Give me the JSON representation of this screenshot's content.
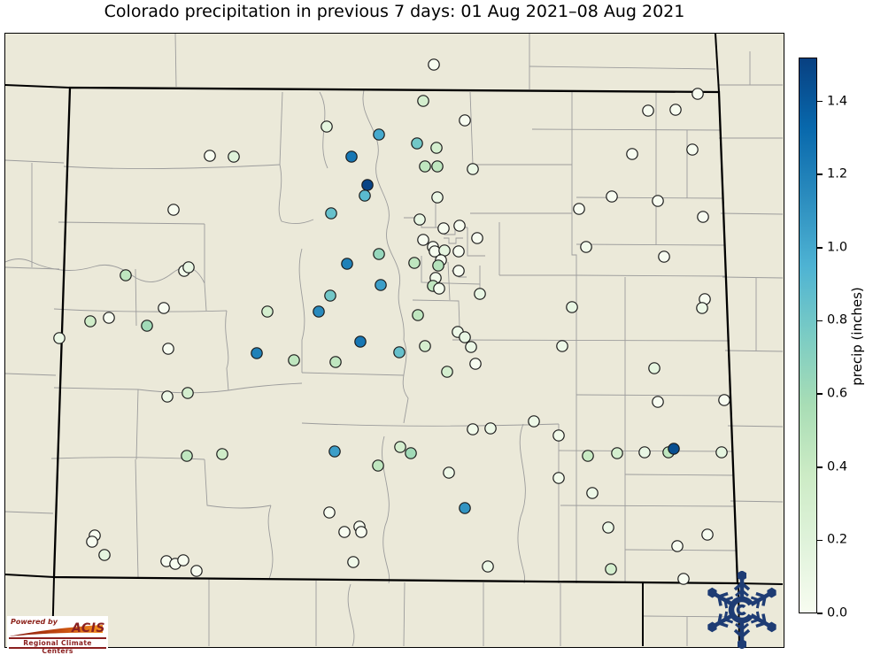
{
  "chart_data": {
    "type": "scatter",
    "title": "Colorado precipitation in previous 7 days: 01 Aug 2021–08 Aug 2021",
    "region": "Colorado state and county boundaries with surrounding states",
    "legend_position": "right colorbar",
    "grid": false,
    "colorbar": {
      "label": "precip (inches)",
      "vmin": 0.0,
      "vmax": 1.52,
      "ticks": [
        0.0,
        0.2,
        0.4,
        0.6,
        0.8,
        1.0,
        1.2,
        1.4
      ],
      "tick_labels": [
        "0.0",
        "0.2",
        "0.4",
        "0.6",
        "0.8",
        "1.0",
        "1.2",
        "1.4"
      ],
      "colormap": "GnBu",
      "stops": [
        "#f7fcf0",
        "#e0f3db",
        "#ccebc5",
        "#a8ddb5",
        "#7bccc4",
        "#4eb3d3",
        "#2b8cbe",
        "#0868ac",
        "#084081"
      ]
    },
    "point_format": [
      "px_x",
      "px_y",
      "precip_inches"
    ],
    "points": [
      [
        489,
        72,
        0
      ],
      [
        787,
        105,
        0
      ],
      [
        762,
        123,
        0
      ],
      [
        731,
        124,
        0
      ],
      [
        477,
        113,
        0.3
      ],
      [
        524,
        135,
        0
      ],
      [
        368,
        142,
        0.15
      ],
      [
        427,
        151,
        1.0
      ],
      [
        470,
        161,
        0.8
      ],
      [
        492,
        166,
        0.3
      ],
      [
        236,
        175,
        0
      ],
      [
        263,
        176,
        0.2
      ],
      [
        396,
        176,
        1.25
      ],
      [
        479,
        187,
        0.45
      ],
      [
        493,
        187,
        0.45
      ],
      [
        533,
        190,
        0.1
      ],
      [
        713,
        173,
        0
      ],
      [
        781,
        168,
        0
      ],
      [
        414,
        208,
        1.5
      ],
      [
        411,
        220,
        0.9
      ],
      [
        493,
        222,
        0.1
      ],
      [
        690,
        221,
        0
      ],
      [
        742,
        226,
        0
      ],
      [
        653,
        235,
        0
      ],
      [
        793,
        244,
        0
      ],
      [
        195,
        236,
        0
      ],
      [
        373,
        240,
        0.85
      ],
      [
        473,
        247,
        0.12
      ],
      [
        500,
        257,
        0
      ],
      [
        518,
        254,
        0
      ],
      [
        477,
        270,
        0
      ],
      [
        538,
        268,
        0
      ],
      [
        488,
        278,
        0.02
      ],
      [
        490,
        283,
        0.02
      ],
      [
        501,
        282,
        0.15
      ],
      [
        517,
        283,
        0
      ],
      [
        661,
        278,
        0.05
      ],
      [
        749,
        289,
        0
      ],
      [
        427,
        286,
        0.65
      ],
      [
        391,
        297,
        1.2
      ],
      [
        467,
        296,
        0.45
      ],
      [
        497,
        293,
        0.03
      ],
      [
        494,
        299,
        0.5
      ],
      [
        517,
        305,
        0
      ],
      [
        491,
        313,
        0.05
      ],
      [
        488,
        322,
        0.45
      ],
      [
        495,
        325,
        0.03
      ],
      [
        541,
        331,
        0.12
      ],
      [
        429,
        321,
        1.05
      ],
      [
        372,
        333,
        0.8
      ],
      [
        359,
        351,
        1.15
      ],
      [
        471,
        355,
        0.45
      ],
      [
        301,
        351,
        0.3
      ],
      [
        165,
        367,
        0.6
      ],
      [
        101,
        362,
        0.35
      ],
      [
        122,
        358,
        0
      ],
      [
        184,
        347,
        0
      ],
      [
        66,
        381,
        0.1
      ],
      [
        189,
        393,
        0
      ],
      [
        141,
        310,
        0.45
      ],
      [
        207,
        305,
        0.05
      ],
      [
        212,
        301,
        0.12
      ],
      [
        645,
        346,
        0.12
      ],
      [
        795,
        337,
        0
      ],
      [
        792,
        347,
        0.08
      ],
      [
        634,
        390,
        0.08
      ],
      [
        738,
        415,
        0.15
      ],
      [
        406,
        385,
        1.25
      ],
      [
        450,
        397,
        0.85
      ],
      [
        378,
        408,
        0.45
      ],
      [
        331,
        406,
        0.45
      ],
      [
        289,
        398,
        1.2
      ],
      [
        479,
        390,
        0.3
      ],
      [
        516,
        374,
        0.08
      ],
      [
        524,
        380,
        0.12
      ],
      [
        531,
        391,
        0.1
      ],
      [
        536,
        410,
        0
      ],
      [
        504,
        419,
        0.3
      ],
      [
        211,
        443,
        0.3
      ],
      [
        188,
        447,
        0.08
      ],
      [
        533,
        484,
        0.05
      ],
      [
        553,
        483,
        0.08
      ],
      [
        602,
        475,
        0.08
      ],
      [
        377,
        509,
        1.05
      ],
      [
        451,
        504,
        0.3
      ],
      [
        463,
        511,
        0.6
      ],
      [
        426,
        525,
        0.45
      ],
      [
        506,
        533,
        0.08
      ],
      [
        210,
        514,
        0.45
      ],
      [
        250,
        512,
        0.35
      ],
      [
        524,
        573,
        1.1
      ],
      [
        371,
        578,
        0
      ],
      [
        405,
        594,
        0
      ],
      [
        407,
        600,
        0
      ],
      [
        388,
        600,
        0
      ],
      [
        398,
        634,
        0.06
      ],
      [
        550,
        639,
        0.08
      ],
      [
        106,
        604,
        0
      ],
      [
        103,
        611,
        0
      ],
      [
        117,
        626,
        0.15
      ],
      [
        187,
        633,
        0
      ],
      [
        197,
        636,
        0
      ],
      [
        206,
        632,
        0
      ],
      [
        221,
        644,
        0
      ],
      [
        742,
        453,
        0
      ],
      [
        817,
        451,
        0
      ],
      [
        630,
        491,
        0.05
      ],
      [
        663,
        514,
        0.4
      ],
      [
        696,
        511,
        0.3
      ],
      [
        727,
        510,
        0.12
      ],
      [
        754,
        510,
        0.45
      ],
      [
        760,
        506,
        1.45
      ],
      [
        814,
        510,
        0.15
      ],
      [
        630,
        539,
        0.05
      ],
      [
        668,
        556,
        0.08
      ],
      [
        686,
        595,
        0.08
      ],
      [
        798,
        603,
        0
      ],
      [
        764,
        616,
        0
      ],
      [
        689,
        642,
        0.3
      ],
      [
        771,
        653,
        0
      ]
    ]
  },
  "logos": {
    "acis": {
      "powered_by": "Powered by",
      "name": "ACIS",
      "subtitle": "Regional Climate Centers",
      "text_color": "#8b2020"
    },
    "climate_center": {
      "letter": "C",
      "color": "#1e3c74"
    }
  },
  "colors": {
    "map_background": "#ebe9d9",
    "county_line": "#9c9c9c",
    "state_line": "#000000",
    "dot_outline": "#1b1b1b"
  }
}
